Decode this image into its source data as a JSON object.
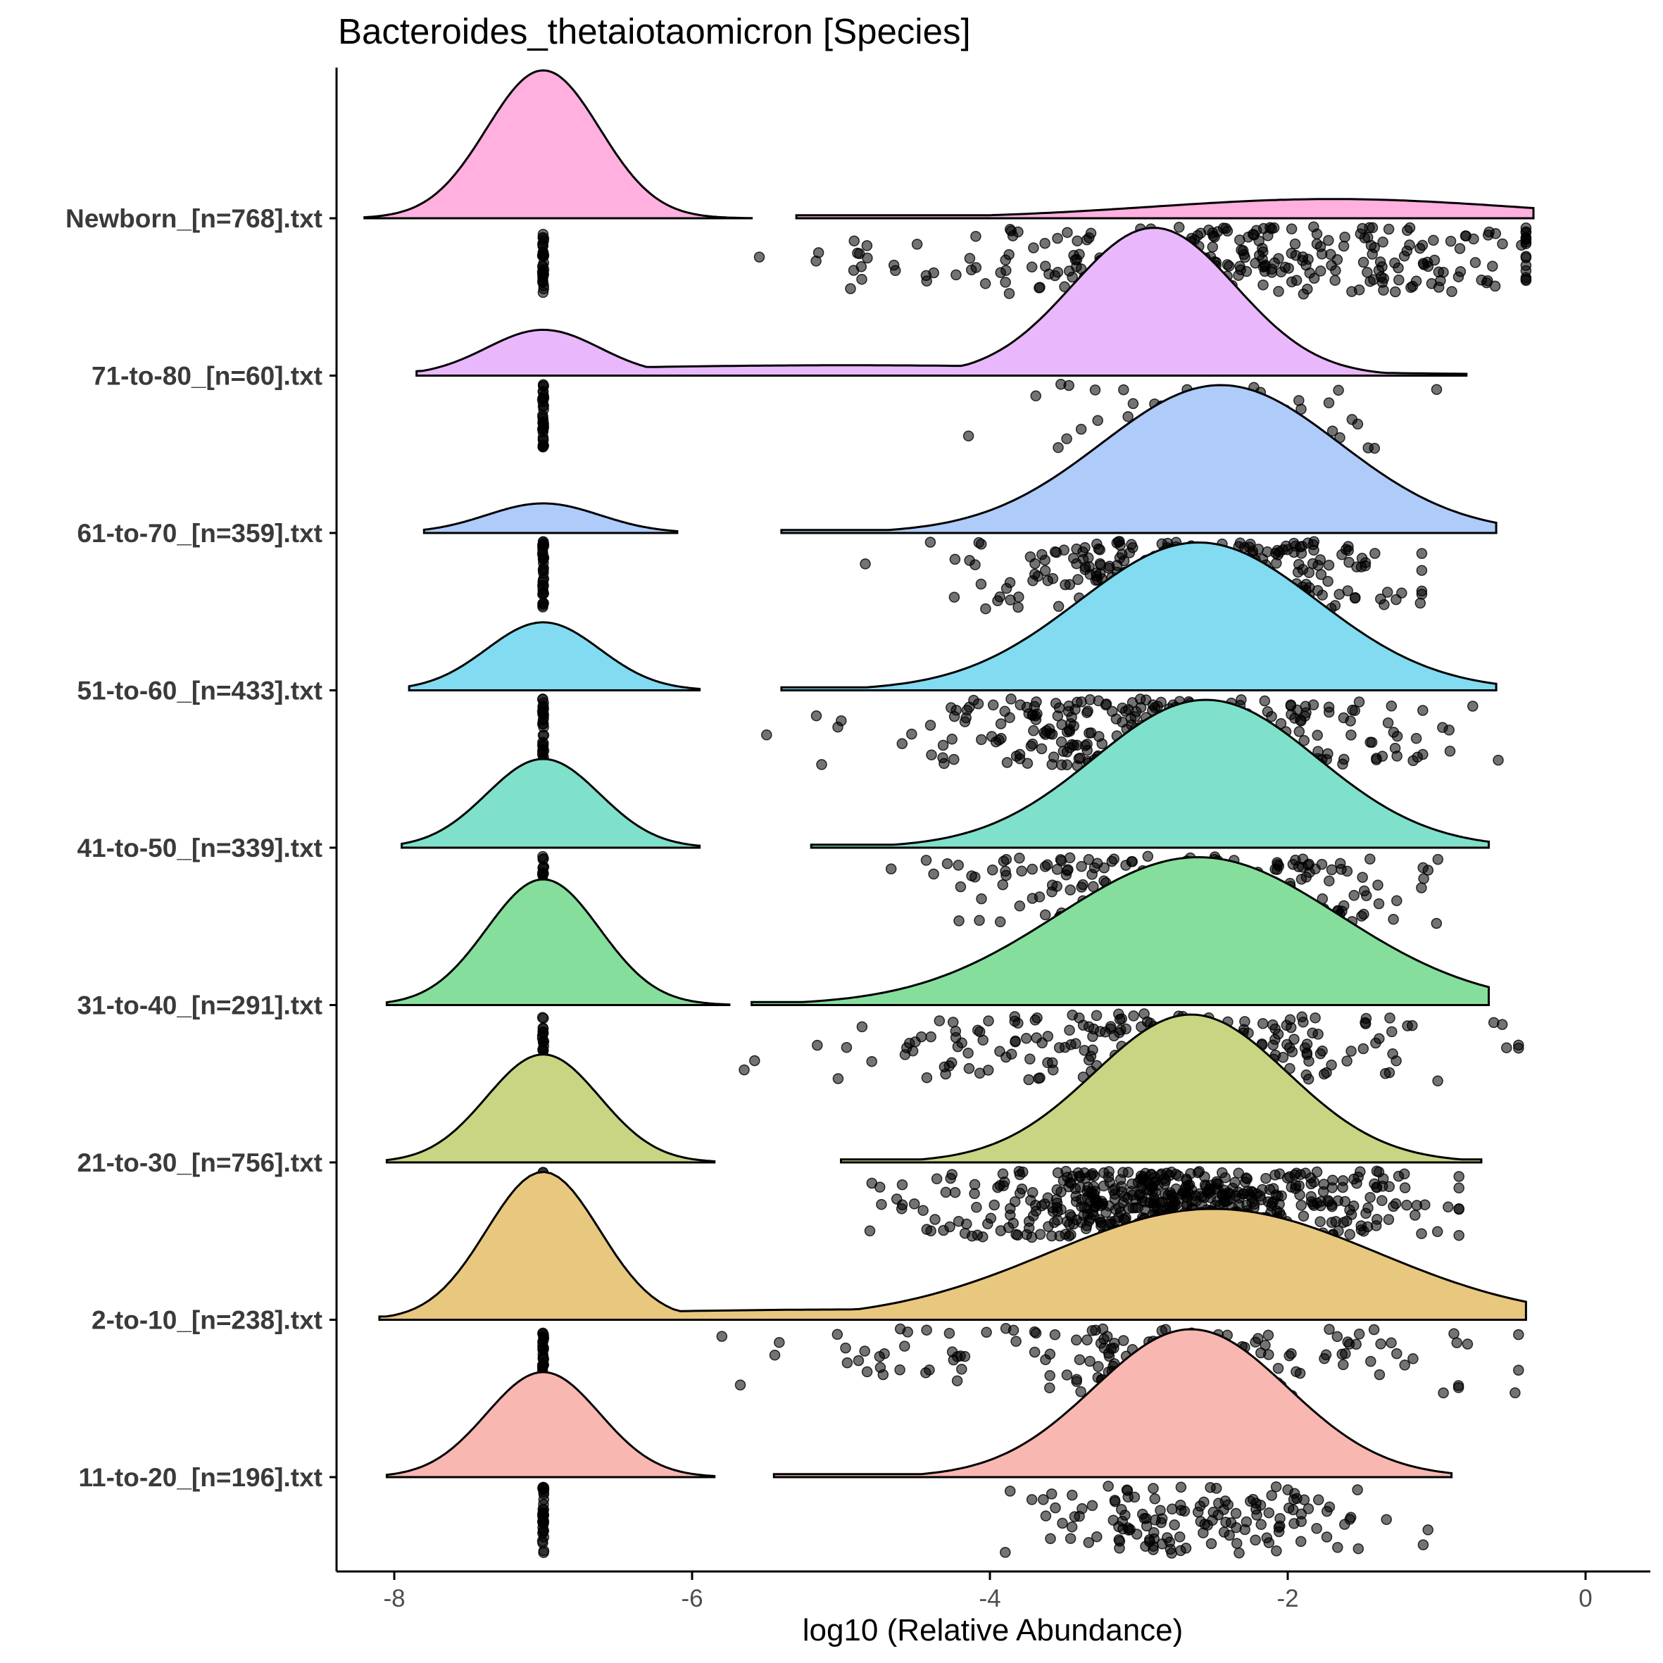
{
  "chart_data": {
    "type": "raincloud",
    "title": "Bacteroides_thetaiotaomicron [Species]",
    "xlabel": "log10 (Relative Abundance)",
    "ylabel": "",
    "xlim": [
      -8.4,
      0.4
    ],
    "xticks": [
      -8,
      -6,
      -4,
      -2,
      0
    ],
    "xtick_labels": [
      "-8",
      "-6",
      "-4",
      "-2",
      "0"
    ],
    "point_style": "black points, semi-transparent, jittered below each density",
    "groups": [
      {
        "label": "Newborn_[n=768].txt",
        "color": "#ffb0df",
        "zero_value": -7.0,
        "zero_fraction": 0.55,
        "low_range": [
          -8.2,
          -5.6
        ],
        "high_range": [
          -5.3,
          -0.35
        ],
        "high_center": -1.7,
        "high_sd": 1.2,
        "high_peak_ratio": 0.13,
        "nonzero_points": 300,
        "point_range": [
          -5.95,
          -0.4
        ],
        "point_center": -2.4,
        "point_sd": 1.2
      },
      {
        "label": "71-to-80_[n=60].txt",
        "color": "#e9b7fb",
        "zero_value": -7.0,
        "zero_fraction": 0.15,
        "low_range": [
          -7.85,
          -0.8
        ],
        "high_range": null,
        "high_center": -2.9,
        "high_sd": 0.55,
        "high_peak_ratio": 1.0,
        "low_peak_ratio": 0.31,
        "nonzero_points": 45,
        "point_range": [
          -6.0,
          -1.0
        ],
        "point_center": -2.7,
        "point_sd": 0.8
      },
      {
        "label": "61-to-70_[n=359].txt",
        "color": "#aecbfa",
        "zero_value": -7.0,
        "zero_fraction": 0.2,
        "low_range": [
          -7.8,
          -6.1
        ],
        "high_range": [
          -5.4,
          -0.6
        ],
        "high_center": -2.45,
        "high_sd": 0.8,
        "high_peak_ratio": 1.0,
        "low_peak_ratio": 0.2,
        "nonzero_points": 290,
        "point_range": [
          -5.9,
          -1.1
        ],
        "point_center": -2.7,
        "point_sd": 0.75
      },
      {
        "label": "51-to-60_[n=433].txt",
        "color": "#82dbf0",
        "zero_value": -7.0,
        "zero_fraction": 0.25,
        "low_range": [
          -7.9,
          -5.95
        ],
        "high_range": [
          -5.4,
          -0.6
        ],
        "high_center": -2.6,
        "high_sd": 0.8,
        "high_peak_ratio": 1.0,
        "low_peak_ratio": 0.46,
        "nonzero_points": 330,
        "point_range": [
          -5.85,
          -0.45
        ],
        "point_center": -2.8,
        "point_sd": 0.8
      },
      {
        "label": "41-to-50_[n=339].txt",
        "color": "#7fe0cb",
        "zero_value": -7.0,
        "zero_fraction": 0.3,
        "low_range": [
          -7.95,
          -5.95
        ],
        "high_range": [
          -5.2,
          -0.65
        ],
        "high_center": -2.55,
        "high_sd": 0.75,
        "high_peak_ratio": 1.0,
        "low_peak_ratio": 0.6,
        "nonzero_points": 240,
        "point_range": [
          -5.55,
          -0.75
        ],
        "point_center": -2.7,
        "point_sd": 0.75
      },
      {
        "label": "31-to-40_[n=291].txt",
        "color": "#86de9c",
        "zero_value": -7.0,
        "zero_fraction": 0.32,
        "low_range": [
          -8.05,
          -5.75
        ],
        "high_range": [
          -5.6,
          -0.65
        ],
        "high_center": -2.6,
        "high_sd": 0.95,
        "high_peak_ratio": 1.0,
        "low_peak_ratio": 0.85,
        "nonzero_points": 230,
        "point_range": [
          -5.65,
          -0.45
        ],
        "point_center": -2.9,
        "point_sd": 0.95
      },
      {
        "label": "21-to-30_[n=756].txt",
        "color": "#c9d582",
        "zero_value": -7.0,
        "zero_fraction": 0.25,
        "low_range": [
          -8.05,
          -5.85
        ],
        "high_range": [
          -5.0,
          -0.7
        ],
        "high_center": -2.65,
        "high_sd": 0.65,
        "high_peak_ratio": 1.0,
        "low_peak_ratio": 0.73,
        "nonzero_points": 560,
        "point_range": [
          -6.15,
          -0.85
        ],
        "point_center": -2.8,
        "point_sd": 0.75
      },
      {
        "label": "2-to-10_[n=238].txt",
        "color": "#e8c77f",
        "zero_value": -7.0,
        "zero_fraction": 0.35,
        "low_range": [
          -8.1,
          -0.4
        ],
        "high_range": null,
        "high_center": -2.5,
        "high_sd": 1.1,
        "high_peak_ratio": 0.75,
        "low_peak_ratio": 1.0,
        "nonzero_points": 160,
        "point_range": [
          -5.8,
          -0.45
        ],
        "point_center": -2.8,
        "point_sd": 1.1
      },
      {
        "label": "11-to-20_[n=196].txt",
        "color": "#f9b7b1",
        "zero_value": -7.0,
        "zero_fraction": 0.3,
        "low_range": [
          -8.05,
          -5.85
        ],
        "high_range": [
          -5.45,
          -0.9
        ],
        "high_center": -2.65,
        "high_sd": 0.65,
        "high_peak_ratio": 1.0,
        "low_peak_ratio": 0.71,
        "nonzero_points": 140,
        "point_range": [
          -5.25,
          -1.05
        ],
        "point_center": -2.6,
        "point_sd": 0.6
      }
    ]
  }
}
